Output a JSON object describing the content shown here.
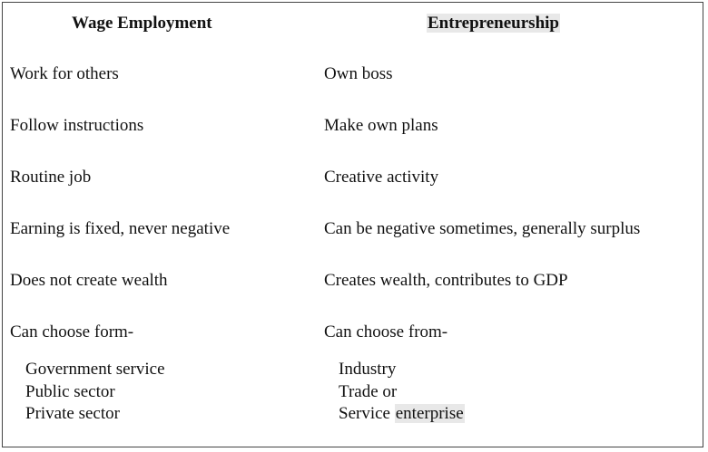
{
  "headers": {
    "left": "Wage Employment",
    "right": "Entrepreneurship"
  },
  "rows": [
    {
      "left": "Work for others",
      "right": "Own boss"
    },
    {
      "left": "Follow instructions",
      "right": "Make own plans"
    },
    {
      "left": "Routine job",
      "right": "Creative activity"
    },
    {
      "left": "Earning is fixed, never negative",
      "right": "Can be negative sometimes, generally surplus"
    },
    {
      "left": "Does not create wealth",
      "right": "Creates wealth, contributes to GDP"
    },
    {
      "left": "Can choose form-",
      "right": "Can choose from-"
    }
  ],
  "sublists": {
    "left": [
      "Government service",
      "Public sector",
      "Private sector"
    ],
    "right_items": [
      "Industry",
      "Trade or"
    ],
    "right_last_prefix": "Service",
    "right_last_highlight": "enterprise"
  }
}
